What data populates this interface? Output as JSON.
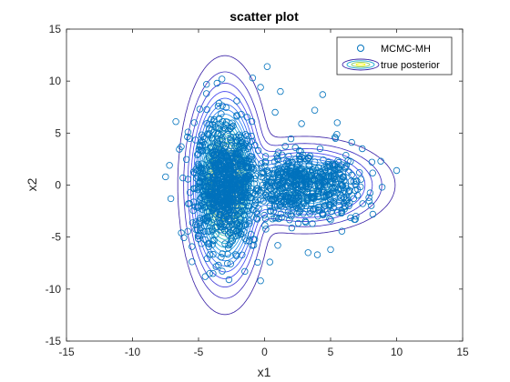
{
  "chart_data": {
    "type": "scatter",
    "title": "scatter plot",
    "xlabel": "x1",
    "ylabel": "x2",
    "xlim": [
      -15,
      15
    ],
    "ylim": [
      -15,
      15
    ],
    "xticks": [
      -15,
      -10,
      -5,
      0,
      5,
      10,
      15
    ],
    "yticks": [
      -15,
      -10,
      -5,
      0,
      5,
      10,
      15
    ],
    "grid": false,
    "legend": {
      "placement": "top-right",
      "entries": [
        "MCMC-MH",
        "true posterior"
      ]
    },
    "colors": {
      "scatter": "#0072BD",
      "contour_low": "#3E26A8",
      "contour_mid": "#1AA7D4",
      "contour_high": "#F9FB15"
    },
    "series": [
      {
        "name": "MCMC-MH",
        "kind": "scatter",
        "outlier_points": [
          [
            0.2,
            11.4
          ],
          [
            4.4,
            8.7
          ],
          [
            -0.9,
            10.3
          ],
          [
            -0.3,
            9.4
          ],
          [
            -4.4,
            8.8
          ],
          [
            -3.6,
            9.8
          ],
          [
            1.2,
            9.0
          ],
          [
            3.8,
            7.2
          ],
          [
            5.5,
            6.0
          ],
          [
            8.8,
            2.3
          ],
          [
            10.0,
            1.4
          ],
          [
            8.9,
            -0.2
          ],
          [
            7.4,
            3.5
          ],
          [
            -7.2,
            1.9
          ],
          [
            -7.1,
            -1.3
          ],
          [
            -7.5,
            0.8
          ],
          [
            -0.3,
            -9.2
          ],
          [
            0.4,
            -7.4
          ],
          [
            -2.7,
            -9.1
          ],
          [
            -4.5,
            -8.8
          ],
          [
            4.0,
            -6.7
          ],
          [
            3.3,
            -6.5
          ],
          [
            5.0,
            -6.2
          ],
          [
            6.8,
            -3.3
          ],
          [
            8.2,
            -2.8
          ],
          [
            -4.9,
            7.3
          ],
          [
            -2.1,
            8.1
          ],
          [
            0.8,
            7.0
          ],
          [
            2.8,
            5.9
          ],
          [
            6.6,
            4.1
          ],
          [
            -6.3,
            -4.6
          ],
          [
            -5.8,
            5.1
          ],
          [
            1.0,
            -5.8
          ],
          [
            -1.5,
            -8.3
          ],
          [
            7.9,
            -1.2
          ]
        ],
        "dense_region": {
          "bulk_count": 1600,
          "modes": [
            {
              "center": [
                -3.0,
                0.0
              ],
              "spread": [
                1.1,
                2.9
              ],
              "weight": 0.62
            },
            {
              "center": [
                2.8,
                0.0
              ],
              "spread": [
                2.2,
                1.5
              ],
              "weight": 0.38
            }
          ]
        }
      },
      {
        "name": "true posterior",
        "kind": "contour",
        "modes": [
          {
            "center": [
              -3.0,
              0.0
            ],
            "sigma": [
              1.2,
              4.2
            ],
            "weight": 1.0
          },
          {
            "center": [
              3.0,
              0.0
            ],
            "sigma": [
              2.5,
              1.7
            ],
            "weight": 0.55
          }
        ],
        "levels": 22
      }
    ]
  }
}
